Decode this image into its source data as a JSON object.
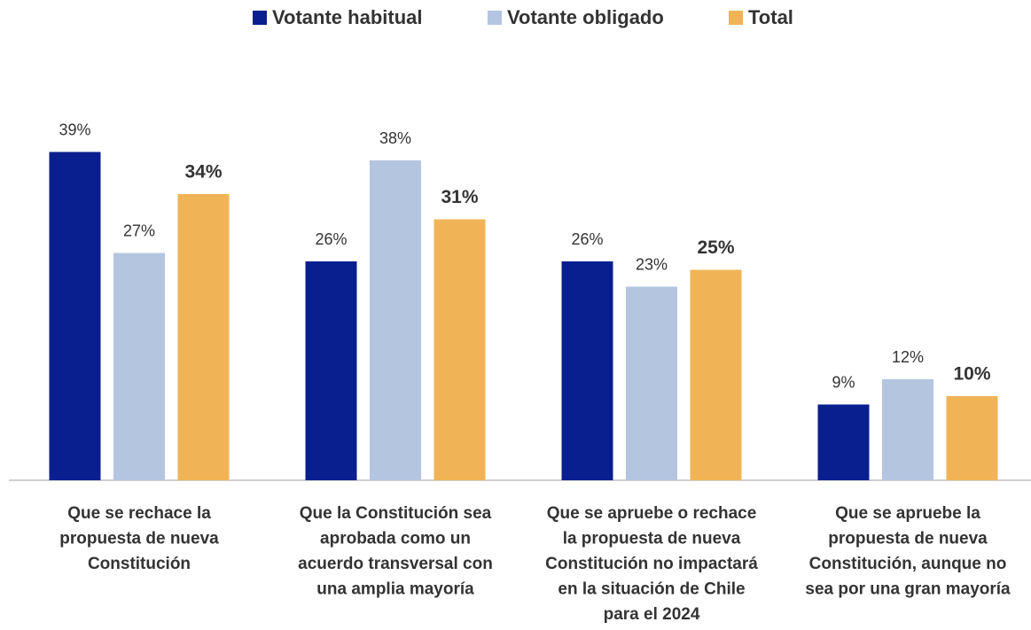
{
  "chart_data": {
    "type": "bar",
    "categories": [
      [
        "Que se rechace la",
        "propuesta de nueva",
        "Constitución"
      ],
      [
        "Que la Constitución sea",
        "aprobada como un",
        "acuerdo transversal con",
        "una amplia mayoría"
      ],
      [
        "Que se apruebe o rechace",
        "la propuesta de nueva",
        "Constitución no impactará",
        "en la situación de Chile",
        "para el 2024"
      ],
      [
        "Que se apruebe la",
        "propuesta de nueva",
        "Constitución, aunque no",
        "sea por una gran mayoría"
      ]
    ],
    "series": [
      {
        "name": "Votante habitual",
        "color": "#0a1f8f",
        "values": [
          39,
          26,
          26,
          9
        ],
        "value_labels": [
          "39%",
          "26%",
          "26%",
          "9%"
        ]
      },
      {
        "name": "Votante obligado",
        "color": "#b4c5e0",
        "values": [
          27,
          38,
          23,
          12
        ],
        "value_labels": [
          "27%",
          "38%",
          "23%",
          "12%"
        ]
      },
      {
        "name": "Total",
        "color": "#f0b457",
        "values": [
          34,
          31,
          25,
          10
        ],
        "value_labels": [
          "34%",
          "31%",
          "25%",
          "10%"
        ]
      }
    ],
    "ylim": [
      0,
      40
    ],
    "legend": "top"
  }
}
